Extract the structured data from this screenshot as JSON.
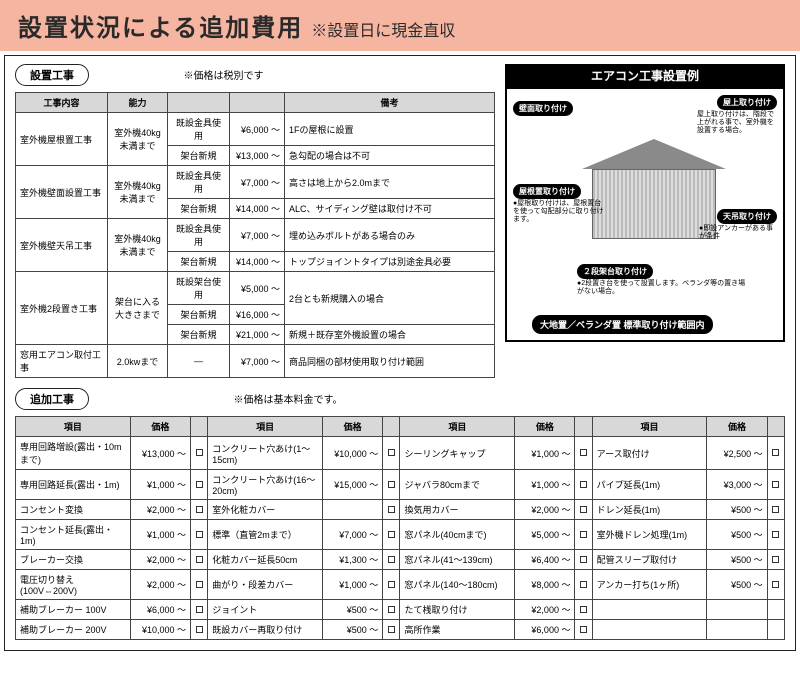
{
  "header": {
    "title": "設置状況による追加費用",
    "sub": "※設置日に現金直収"
  },
  "section1": {
    "label": "設置工事",
    "note": "※価格は税別です"
  },
  "table1": {
    "headers": [
      "工事内容",
      "能力",
      "",
      "",
      "備考"
    ],
    "rows": [
      {
        "c1": "室外機屋根置工事",
        "c1_rs": 2,
        "c2": "室外機40kg\n未満まで",
        "c2_rs": 2,
        "c3": "既設金具使用",
        "c4": "¥6,000 ～",
        "c5": "1Fの屋根に設置"
      },
      {
        "c3": "架台新規",
        "c4": "¥13,000 ～",
        "c5": "急勾配の場合は不可"
      },
      {
        "c1": "室外機壁面設置工事",
        "c1_rs": 2,
        "c2": "室外機40kg\n未満まで",
        "c2_rs": 2,
        "c3": "既設金具使用",
        "c4": "¥7,000 ～",
        "c5": "高さは地上から2.0mまで"
      },
      {
        "c3": "架台新規",
        "c4": "¥14,000 ～",
        "c5": "ALC、サイディング壁は取付け不可"
      },
      {
        "c1": "室外機壁天吊工事",
        "c1_rs": 2,
        "c2": "室外機40kg\n未満まで",
        "c2_rs": 2,
        "c3": "既設金具使用",
        "c4": "¥7,000 ～",
        "c5": "埋め込みボルトがある場合のみ"
      },
      {
        "c3": "架台新規",
        "c4": "¥14,000 ～",
        "c5": "トップジョイントタイプは別途金具必要"
      },
      {
        "c1": "室外機2段置き工事",
        "c1_rs": 3,
        "c2": "架台に入る\n大きさまで",
        "c2_rs": 3,
        "c3": "既設架台使用",
        "c4": "¥5,000 ～",
        "c5": "2台とも新規購入の場合",
        "c5_rs": 2
      },
      {
        "c3": "架台新規",
        "c4": "¥16,000 ～"
      },
      {
        "c3": "架台新規",
        "c4": "¥21,000 ～",
        "c5": "新規＋既存室外機設置の場合"
      },
      {
        "c1": "窓用エアコン取付工事",
        "c2": "2.0kwまで",
        "c3": "—",
        "c4": "¥7,000 ～",
        "c5": "商品同梱の部材使用取り付け範囲"
      }
    ]
  },
  "example": {
    "title": "エアコン工事設置例",
    "labels": {
      "wall": "壁面取り付け",
      "rooftop": "屋上取り付け",
      "roof": "屋根置取り付け",
      "ceiling": "天吊取り付け",
      "two_stage": "２段架台取り付け",
      "ground": "大地置／ベランダ置 標準取り付け範囲内"
    },
    "desc": {
      "rooftop": "屋上取り付けは、階段で上がれる事で、室外機を設置する場合。",
      "roof": "●屋根取り付けは、屋根置台を使って勾配部分に取り付けます。",
      "ceiling": "●即設アンカーがある事が条件",
      "two_stage": "●2段置き台を使って設置します。ベランダ等の置き場がない場合。"
    }
  },
  "section2": {
    "label": "追加工事",
    "note": "※価格は基本料金です。"
  },
  "table2": {
    "headers": [
      "項目",
      "価格",
      "",
      "項目",
      "価格",
      "",
      "項目",
      "価格",
      "",
      "項目",
      "価格",
      ""
    ],
    "rows": [
      [
        "専用回路増設(露出・10mまで)",
        "¥13,000 ～",
        "コンクリート穴あけ(1～15cm)",
        "¥10,000 ～",
        "シーリングキャップ",
        "¥1,000 ～",
        "アース取付け",
        "¥2,500 ～"
      ],
      [
        "専用回路延長(露出・1m)",
        "¥1,000 ～",
        "コンクリート穴あけ(16～20cm)",
        "¥15,000 ～",
        "ジャバラ80cmまで",
        "¥1,000 ～",
        "パイプ延長(1m)",
        "¥3,000 ～"
      ],
      [
        "コンセント変換",
        "¥2,000 ～",
        "室外化粧カバー",
        "",
        "換気用カバー",
        "¥2,000 ～",
        "ドレン延長(1m)",
        "¥500 ～"
      ],
      [
        "コンセント延長(露出・1m)",
        "¥1,000 ～",
        "標準（直管2mまで）",
        "¥7,000 ～",
        "窓パネル(40cmまで)",
        "¥5,000 ～",
        "室外機ドレン処理(1m)",
        "¥500 ～"
      ],
      [
        "ブレーカー交換",
        "¥2,000 ～",
        "化粧カバー延長50cm",
        "¥1,300 ～",
        "窓パネル(41～139cm)",
        "¥6,400 ～",
        "配管スリーブ取付け",
        "¥500 ～"
      ],
      [
        "電圧切り替え(100V⇔200V)",
        "¥2,000 ～",
        "曲がり・段差カバー",
        "¥1,000 ～",
        "窓パネル(140～180cm)",
        "¥8,000 ～",
        "アンカー打ち(1ヶ所)",
        "¥500 ～"
      ],
      [
        "補助ブレーカー 100V",
        "¥6,000 ～",
        "ジョイント",
        "¥500 ～",
        "たて桟取り付け",
        "¥2,000 ～",
        "",
        ""
      ],
      [
        "補助ブレーカー 200V",
        "¥10,000 ～",
        "既設カバー再取り付け",
        "¥500 ～",
        "高所作業",
        "¥6,000 ～",
        "",
        ""
      ]
    ]
  }
}
